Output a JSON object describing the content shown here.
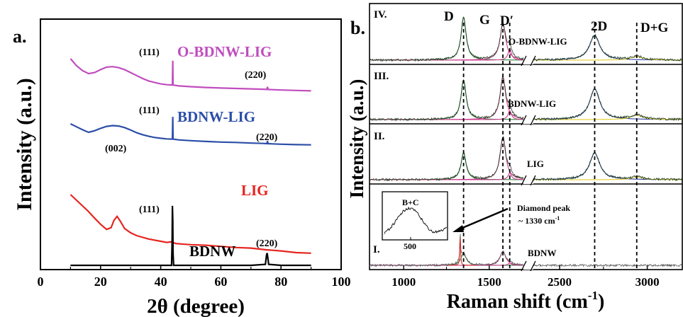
{
  "colors": {
    "odbnw_lig": "#c04dbf",
    "bdnw_lig": "#2c4ea8",
    "lig": "#e5251f",
    "bdnw": "#000000",
    "fit_green": "#2f8a3a",
    "fit_pink": "#cc3d8f",
    "fit_blue": "#3345b0",
    "fit_yellow": "#e3cd2b",
    "fit_red": "#d82b2b"
  },
  "chart_data": [
    {
      "panel_label": "a.",
      "type": "line",
      "xlabel": "2θ (degree)",
      "ylabel": "Intensity (a.u.)",
      "xlim": [
        0,
        100
      ],
      "x_ticks": [
        0,
        20,
        40,
        60,
        80,
        100
      ],
      "x_tick_labels": [
        "0",
        "20",
        "40",
        "60",
        "80",
        "100"
      ],
      "series": [
        {
          "name": "O-BDNW-LIG",
          "color": "#c04dbf",
          "x": [
            10,
            12,
            14,
            16,
            18,
            20,
            22,
            24,
            26,
            28,
            30,
            32,
            34,
            36,
            38,
            40,
            42,
            43.9,
            44,
            44.1,
            46,
            50,
            55,
            60,
            65,
            70,
            74,
            75.3,
            75.5,
            75.7,
            77,
            80,
            85,
            90
          ],
          "y": [
            5.4,
            5.05,
            4.8,
            4.65,
            4.7,
            4.85,
            4.98,
            5.0,
            4.95,
            4.85,
            4.7,
            4.55,
            4.4,
            4.28,
            4.2,
            4.13,
            4.09,
            4.07,
            5.3,
            4.07,
            4.03,
            3.99,
            3.95,
            3.92,
            3.9,
            3.88,
            3.86,
            3.85,
            3.98,
            3.85,
            3.84,
            3.82,
            3.8,
            3.78
          ]
        },
        {
          "name": "BDNW-LIG",
          "color": "#2c4ea8",
          "x": [
            10,
            12,
            14,
            16,
            18,
            20,
            22,
            24,
            26,
            28,
            30,
            32,
            34,
            36,
            38,
            40,
            42,
            43.9,
            44,
            44.1,
            46,
            50,
            55,
            60,
            65,
            70,
            74,
            75.3,
            75.5,
            75.7,
            77,
            80,
            85,
            90
          ],
          "y": [
            3.05,
            2.9,
            2.75,
            2.62,
            2.7,
            2.82,
            2.92,
            2.96,
            2.94,
            2.86,
            2.74,
            2.6,
            2.5,
            2.42,
            2.36,
            2.32,
            2.29,
            2.28,
            3.4,
            2.28,
            2.24,
            2.2,
            2.16,
            2.13,
            2.11,
            2.08,
            2.06,
            2.05,
            2.18,
            2.05,
            2.04,
            2.02,
            2.0,
            1.99
          ]
        },
        {
          "name": "LIG",
          "color": "#e5251f",
          "x": [
            10,
            12,
            14,
            16,
            18,
            20,
            22,
            23.5,
            24.5,
            25.5,
            26.5,
            28,
            30,
            32,
            36,
            40,
            42,
            43.5,
            45,
            50,
            55,
            60,
            65,
            70,
            75,
            80,
            85,
            90
          ],
          "y": [
            2.55,
            2.35,
            2.15,
            1.95,
            1.72,
            1.5,
            1.32,
            1.38,
            1.65,
            1.78,
            1.62,
            1.35,
            1.2,
            1.1,
            0.98,
            0.9,
            0.86,
            0.88,
            0.82,
            0.78,
            0.76,
            0.72,
            0.68,
            0.66,
            0.6,
            0.56,
            0.5,
            0.48
          ]
        },
        {
          "name": "BDNW",
          "color": "#000000",
          "x": [
            10,
            20,
            30,
            40,
            43.6,
            43.8,
            43.9,
            44.0,
            44.1,
            44.3,
            50,
            60,
            70,
            74.8,
            75.2,
            75.4,
            75.6,
            75.9,
            80,
            90
          ],
          "y": [
            0.0,
            0.0,
            0.0,
            0.0,
            0.0,
            1.2,
            2.9,
            2.2,
            0.6,
            0.0,
            0.0,
            0.0,
            0.0,
            0.05,
            0.5,
            0.6,
            0.4,
            0.05,
            0.0,
            0.0
          ]
        }
      ],
      "peak_labels": [
        {
          "text": "(111)",
          "series": "O-BDNW-LIG"
        },
        {
          "text": "(220)",
          "series": "O-BDNW-LIG"
        },
        {
          "text": "(111)",
          "series": "BDNW-LIG"
        },
        {
          "text": "(220)",
          "series": "BDNW-LIG"
        },
        {
          "text": "(002)",
          "series": "LIG"
        },
        {
          "text": "(111)",
          "series": "BDNW"
        },
        {
          "text": "(220)",
          "series": "BDNW"
        }
      ]
    },
    {
      "panel_label": "b.",
      "type": "line",
      "xlabel": "Raman shift (cm",
      "xlabel_sup": "-1",
      "xlabel_end": ")",
      "ylabel": "Intensity (a.u.)",
      "x_tick_labels": [
        "1000",
        "1500",
        "2500",
        "3000"
      ],
      "axis_break": true,
      "peaks": [
        {
          "label": "D",
          "x": 1350
        },
        {
          "label": "G",
          "x": 1580
        },
        {
          "label": "D′",
          "x": 1620
        },
        {
          "label": "2D",
          "x": 2700
        },
        {
          "label": "D+G",
          "x": 2940
        }
      ],
      "subpanels": [
        {
          "roman": "IV.",
          "name": "O-BDNW-LIG",
          "D": 0.95,
          "G": 0.8,
          "Dp": 0.25,
          "D2": 0.55,
          "DG": 0.08
        },
        {
          "roman": "III.",
          "name": "BDNW-LIG",
          "D": 0.9,
          "G": 0.95,
          "Dp": 0.2,
          "D2": 0.7,
          "DG": 0.1
        },
        {
          "roman": "II.",
          "name": "LIG",
          "D": 0.6,
          "G": 0.95,
          "Dp": 0.15,
          "D2": 0.6,
          "DG": 0.06
        },
        {
          "roman": "I.",
          "name": "BDNW",
          "D": 0.28,
          "G": 0.32,
          "Dp": 0.05,
          "D2": 0.0,
          "DG": 0.0,
          "diamond_peak": 0.62
        }
      ],
      "annotation": {
        "text": "Diamond peak",
        "value_text": "~ 1330 cm",
        "value_sup": "-1",
        "x": 1330
      },
      "inset": {
        "label": "B+C",
        "tick_label": "500"
      }
    }
  ]
}
